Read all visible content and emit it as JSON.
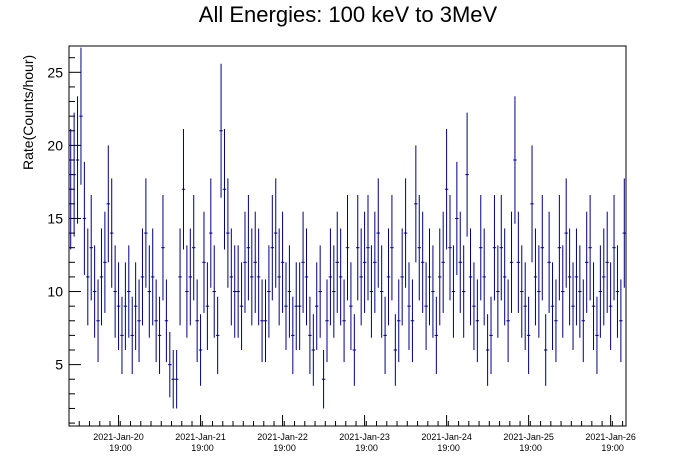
{
  "chart_data": {
    "type": "scatter",
    "title": "All Energies:  100 keV to 3MeV",
    "xlabel": "",
    "ylabel": "Rate(Counts/hour)",
    "ylim": [
      0.8,
      26.8
    ],
    "yticks": [
      5,
      10,
      15,
      20,
      25
    ],
    "xlim_hours": [
      0,
      163
    ],
    "xticks": [
      {
        "line1": "2021-Jan-20",
        "line2": "19:00"
      },
      {
        "line1": "2021-Jan-21",
        "line2": "19:00"
      },
      {
        "line1": "2021-Jan-22",
        "line2": "19:00"
      },
      {
        "line1": "2021-Jan-23",
        "line2": "19:00"
      },
      {
        "line1": "2021-Jan-24",
        "line2": "19:00"
      },
      {
        "line1": "2021-Jan-25",
        "line2": "19:00"
      },
      {
        "line1": "2021-Jan-26",
        "line2": "19:00"
      }
    ],
    "marker_color": "#000080",
    "error_bars": "sqrt(N) per hourly bin",
    "values": [
      17,
      18,
      19,
      22,
      15,
      11,
      13,
      10,
      8,
      11,
      12,
      16,
      14,
      10,
      9,
      7,
      9,
      10,
      7,
      9,
      8,
      11,
      14,
      10,
      11,
      8,
      7,
      13,
      8,
      5,
      4,
      4,
      11,
      17,
      10,
      11,
      13,
      8,
      6,
      12,
      9,
      14,
      10,
      7,
      21,
      17,
      14,
      11,
      10,
      10,
      9,
      12,
      13,
      11,
      12,
      11,
      8,
      8,
      10,
      13,
      14,
      11,
      12,
      9,
      10,
      7,
      9,
      9,
      12,
      11,
      7,
      6,
      9,
      10,
      4,
      8,
      11,
      10,
      12,
      11,
      8,
      13,
      9,
      6,
      13,
      11,
      12,
      13,
      10,
      12,
      14,
      10,
      7,
      11,
      13,
      6,
      8,
      11,
      14,
      9,
      8,
      16,
      13,
      12,
      9,
      11,
      10,
      7,
      11,
      12,
      17,
      13,
      10,
      15,
      12,
      10,
      18,
      11,
      9,
      8,
      13,
      11,
      6,
      7,
      13,
      10,
      13,
      11,
      8,
      12,
      19,
      12,
      10,
      9,
      7,
      16,
      11,
      10,
      13,
      6,
      12,
      9,
      8,
      13,
      10,
      14,
      11,
      9,
      11,
      10,
      8,
      12,
      13,
      9,
      7,
      10,
      11,
      12,
      9,
      13,
      10,
      8,
      14
    ]
  }
}
